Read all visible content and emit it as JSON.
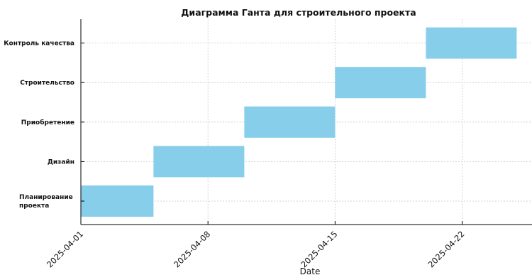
{
  "chart_data": {
    "type": "gantt",
    "title": "Диаграмма Ганта для строительного проекта",
    "xlabel": "Date",
    "ylabel": "",
    "x_ticks": [
      "2025-04-01",
      "2025-04-08",
      "2025-04-15",
      "2025-04-22"
    ],
    "xlim": [
      "2025-04-01",
      "2025-04-26"
    ],
    "grid": true,
    "bar_color": "#87ceeb",
    "tasks": [
      {
        "name": "Планирование проекта",
        "label_lines": [
          "Планирование",
          "проекта"
        ],
        "start": "2025-04-01",
        "end": "2025-04-05"
      },
      {
        "name": "Дизайн",
        "label_lines": [
          "Дизайн"
        ],
        "start": "2025-04-05",
        "end": "2025-04-10"
      },
      {
        "name": "Приобретение",
        "label_lines": [
          "Приобретение"
        ],
        "start": "2025-04-10",
        "end": "2025-04-15"
      },
      {
        "name": "Строительство",
        "label_lines": [
          "Строительство"
        ],
        "start": "2025-04-15",
        "end": "2025-04-20"
      },
      {
        "name": "Контроль качества",
        "label_lines": [
          "Контроль качества"
        ],
        "start": "2025-04-20",
        "end": "2025-04-25"
      }
    ]
  }
}
